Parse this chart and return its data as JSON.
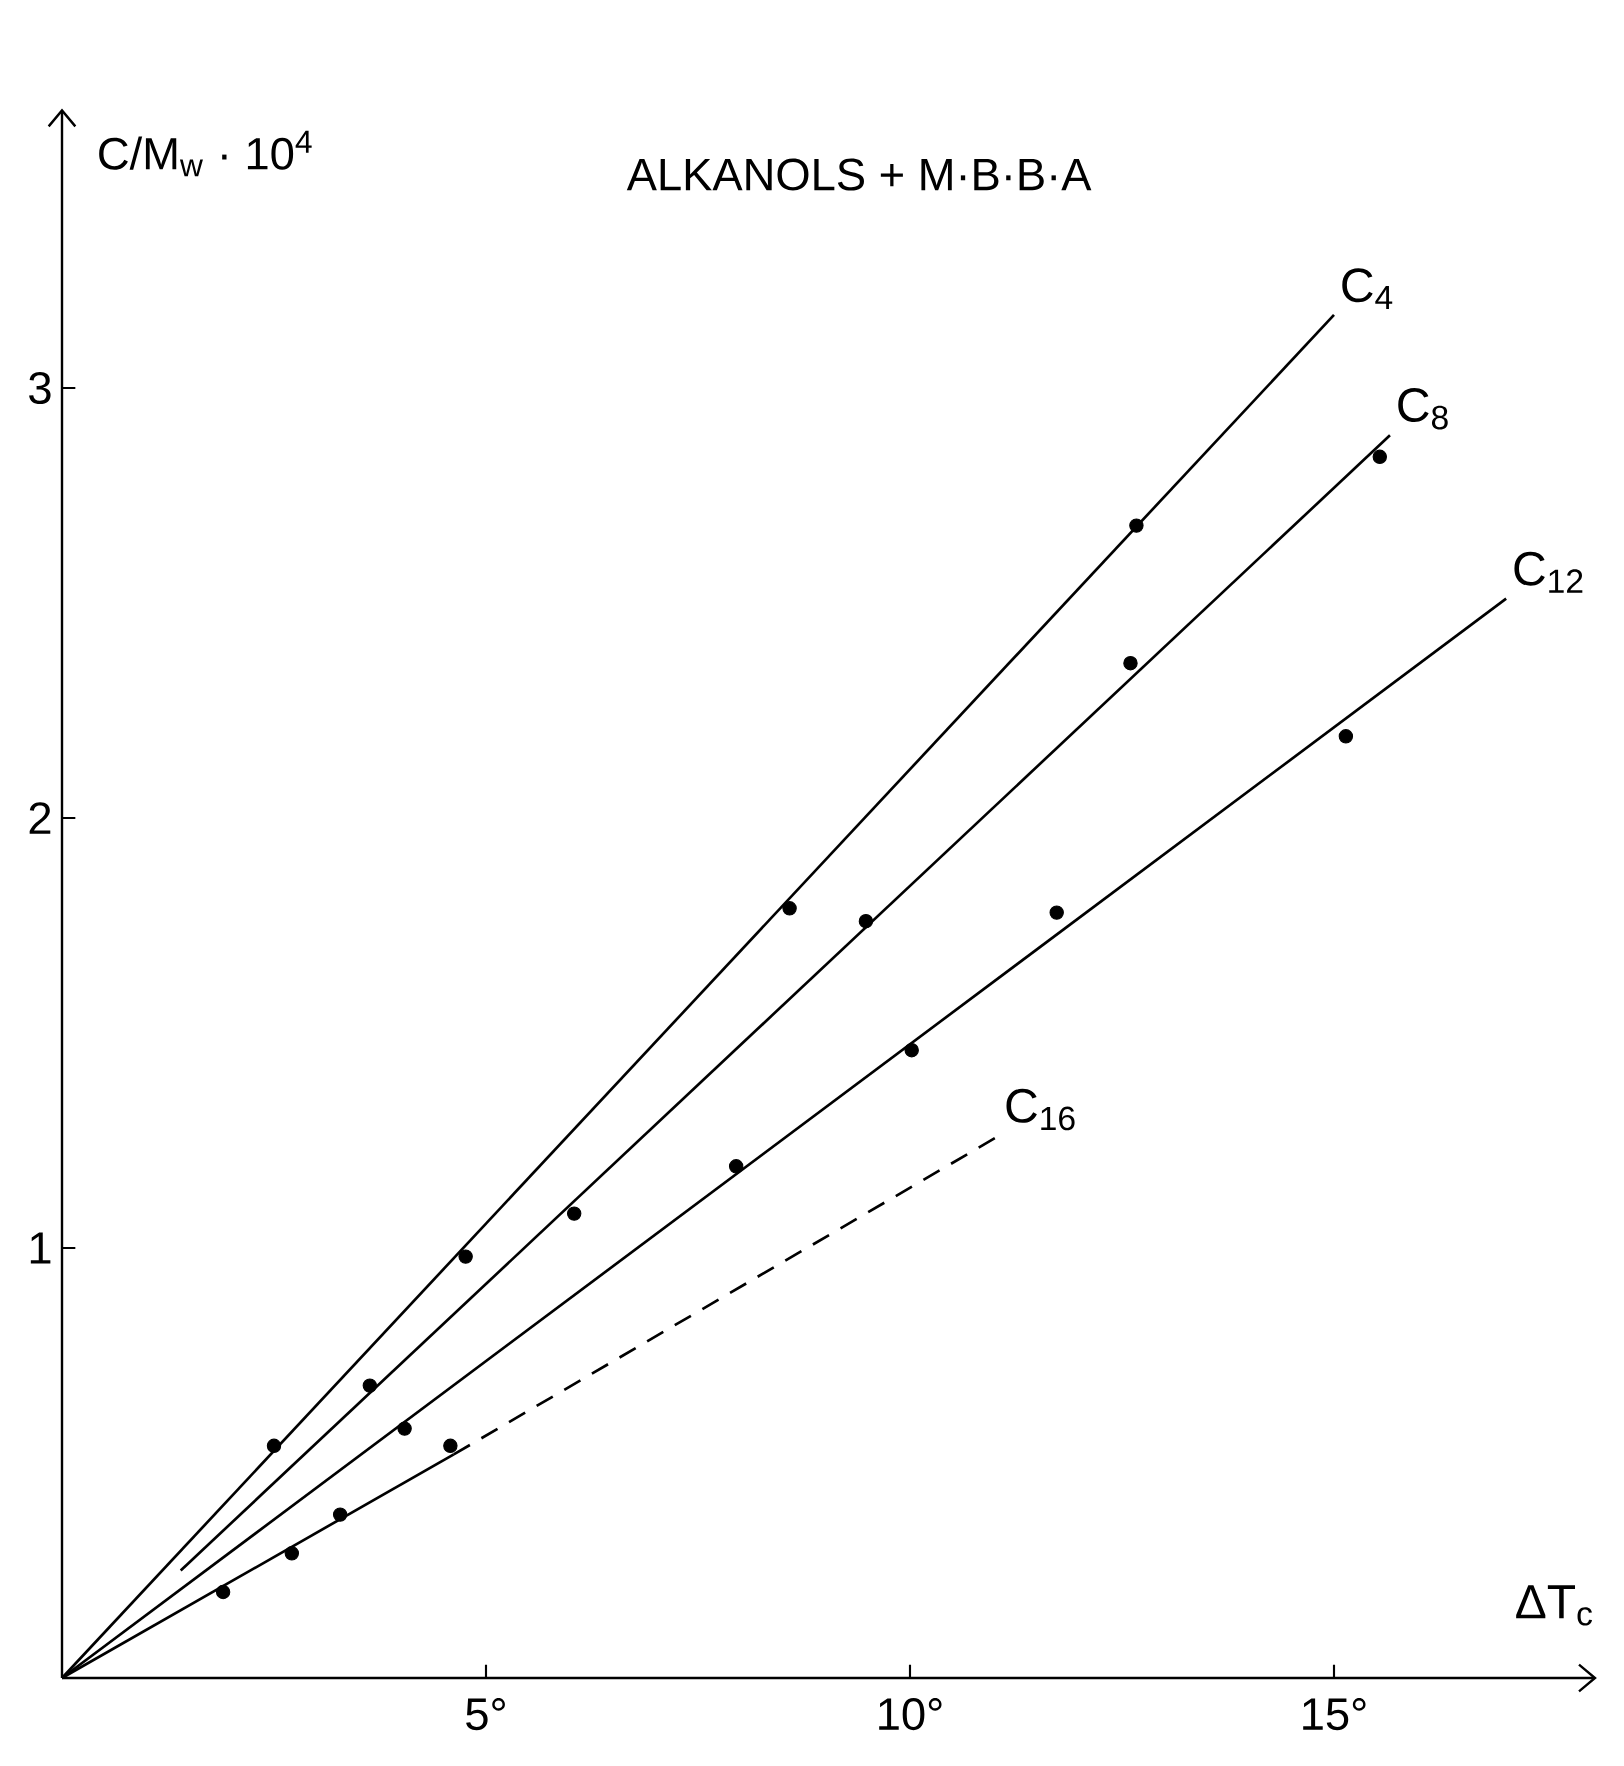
{
  "chart_data": {
    "type": "scatter",
    "title": "ALKANOLS + M·B·B·A",
    "xlabel": "ΔT$_{c}$",
    "ylabel": "C/M$_{w}$ · 10$^{4}$",
    "xlim": [
      0,
      18.1
    ],
    "ylim": [
      0,
      3.65
    ],
    "xticks": [
      {
        "value": 5,
        "label": "5°"
      },
      {
        "value": 10,
        "label": "10°"
      },
      {
        "value": 15,
        "label": "15°"
      }
    ],
    "yticks": [
      1,
      2,
      3
    ],
    "marker": "circle",
    "grid": false,
    "series": [
      {
        "color": "#000000",
        "x": [
          2.5,
          4.76,
          8.58,
          12.67
        ],
        "values": [
          0.54,
          0.98,
          1.79,
          2.68
        ]
      },
      {
        "color": "#000000",
        "x": [
          3.63,
          6.04,
          9.48,
          12.6,
          15.54
        ],
        "values": [
          0.68,
          1.08,
          1.76,
          2.36,
          2.84
        ]
      },
      {
        "color": "#000000",
        "x": [
          4.04,
          7.95,
          10.02,
          11.73,
          15.14
        ],
        "values": [
          0.58,
          1.19,
          1.46,
          1.78,
          2.19
        ]
      },
      {
        "color": "#000000",
        "x": [
          1.9,
          2.71,
          3.28,
          4.58
        ],
        "values": [
          0.2,
          0.29,
          0.38,
          0.54
        ]
      },
      {
        "type": "line",
        "name": "C$_{4}$",
        "color": "#000000",
        "line_style": "solid",
        "marker": "none",
        "x": [
          0,
          15.0
        ],
        "values": [
          0,
          3.17
        ]
      },
      {
        "type": "line",
        "name": "C$_{8}$",
        "color": "#000000",
        "line_style": "solid",
        "marker": "none",
        "x": [
          1.4,
          15.66
        ],
        "values": [
          0.25,
          2.89
        ]
      },
      {
        "type": "line",
        "name": "C$_{12}$",
        "color": "#000000",
        "line_style": "solid",
        "marker": "none",
        "x": [
          0,
          17.03
        ],
        "values": [
          0,
          2.51
        ]
      },
      {
        "type": "line",
        "color": "#000000",
        "line_style": "solid",
        "marker": "none",
        "x": [
          0,
          4.62
        ],
        "values": [
          0,
          0.52
        ]
      },
      {
        "type": "line",
        "name": "C$_{16}$",
        "color": "#000000",
        "line_style": "dashed",
        "marker": "none",
        "x": [
          4.62,
          11.04
        ],
        "values": [
          0.52,
          1.26
        ]
      }
    ]
  }
}
